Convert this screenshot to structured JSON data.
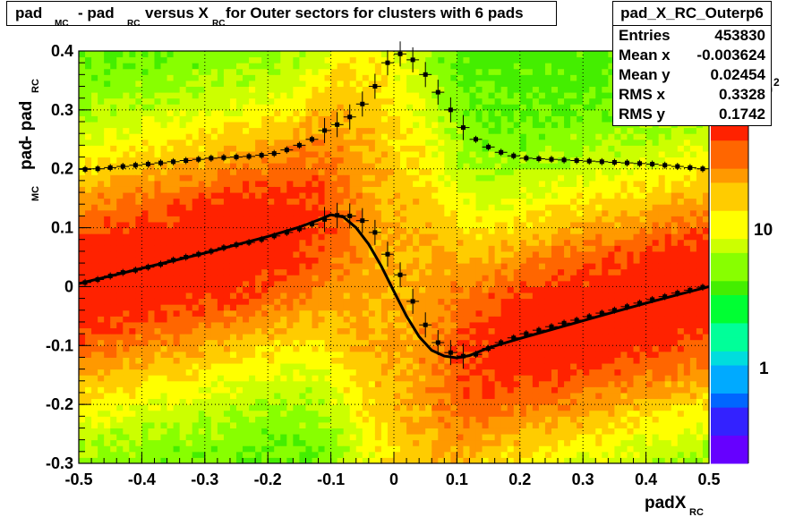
{
  "title": {
    "p1": "pad",
    "s1": "MC",
    "p2": " - pad",
    "s2": "RC",
    "p3": " versus X",
    "s3": "RC",
    "p4": " for Outer sectors for clusters with 6 pads"
  },
  "stats": {
    "name": "pad_X_RC_Outerp6",
    "rows": [
      {
        "key": "Entries",
        "value": "453830"
      },
      {
        "key": "Mean x",
        "value": "-0.003624"
      },
      {
        "key": "Mean y",
        "value": "0.02454"
      },
      {
        "key": "RMS x",
        "value": "0.3328"
      },
      {
        "key": "RMS y",
        "value": "0.1742"
      }
    ]
  },
  "colors": {
    "frame": "#000000",
    "points": "#000000",
    "fit_curve": "#000000",
    "palette": [
      "#6600ff",
      "#3322ff",
      "#0066ff",
      "#00aaff",
      "#00dddd",
      "#00ff99",
      "#00ff33",
      "#44ee00",
      "#88ff00",
      "#ccff00",
      "#ffff00",
      "#ffcc00",
      "#ff9900",
      "#ff6600",
      "#ff2200"
    ]
  },
  "chart_data": {
    "type": "heatmap",
    "xlabel": "padX",
    "xlabel_sub": "RC",
    "ylabel": "pad",
    "ylabel_sub1": "MC",
    "ylabel_mid": " - pad",
    "ylabel_sub2": "RC",
    "xlim": [
      -0.5,
      0.5
    ],
    "ylim": [
      -0.3,
      0.4
    ],
    "x_ticks": [
      "-0.5",
      "-0.4",
      "-0.3",
      "-0.2",
      "-0.1",
      "0",
      "0.1",
      "0.2",
      "0.3",
      "0.4",
      "0.5"
    ],
    "y_ticks": [
      "-0.3",
      "-0.2",
      "-0.1",
      "0",
      "0.1",
      "0.2",
      "0.3",
      "0.4"
    ],
    "grid": true,
    "z_log": true,
    "colorbar_labels": [
      "1",
      "10",
      "10"
    ],
    "colorbar_exp": "2",
    "mean_profile": {
      "x": [
        -0.49,
        -0.47,
        -0.45,
        -0.43,
        -0.41,
        -0.39,
        -0.37,
        -0.35,
        -0.33,
        -0.31,
        -0.29,
        -0.27,
        -0.25,
        -0.23,
        -0.21,
        -0.19,
        -0.17,
        -0.15,
        -0.13,
        -0.11,
        -0.09,
        -0.07,
        -0.05,
        -0.03,
        -0.01,
        0.01,
        0.03,
        0.05,
        0.07,
        0.09,
        0.11,
        0.13,
        0.15,
        0.17,
        0.19,
        0.21,
        0.23,
        0.25,
        0.27,
        0.29,
        0.31,
        0.33,
        0.35,
        0.37,
        0.39,
        0.41,
        0.43,
        0.45,
        0.47,
        0.49
      ],
      "y": [
        0.007,
        0.012,
        0.018,
        0.024,
        0.028,
        0.033,
        0.038,
        0.045,
        0.05,
        0.055,
        0.06,
        0.066,
        0.071,
        0.075,
        0.08,
        0.086,
        0.092,
        0.098,
        0.106,
        0.114,
        0.121,
        0.12,
        0.112,
        0.092,
        0.055,
        0.02,
        -0.025,
        -0.065,
        -0.095,
        -0.112,
        -0.118,
        -0.115,
        -0.105,
        -0.095,
        -0.087,
        -0.08,
        -0.074,
        -0.068,
        -0.062,
        -0.057,
        -0.051,
        -0.045,
        -0.04,
        -0.034,
        -0.028,
        -0.022,
        -0.017,
        -0.011,
        -0.006,
        -0.001
      ]
    },
    "rms_profile": {
      "x": [
        -0.49,
        -0.47,
        -0.45,
        -0.43,
        -0.41,
        -0.39,
        -0.37,
        -0.35,
        -0.33,
        -0.31,
        -0.29,
        -0.27,
        -0.25,
        -0.23,
        -0.21,
        -0.19,
        -0.17,
        -0.15,
        -0.13,
        -0.11,
        -0.09,
        -0.07,
        -0.05,
        -0.03,
        -0.01,
        0.01,
        0.03,
        0.05,
        0.07,
        0.09,
        0.11,
        0.13,
        0.15,
        0.17,
        0.19,
        0.21,
        0.23,
        0.25,
        0.27,
        0.29,
        0.31,
        0.33,
        0.35,
        0.37,
        0.39,
        0.41,
        0.43,
        0.45,
        0.47,
        0.49
      ],
      "y": [
        0.199,
        0.2,
        0.202,
        0.204,
        0.206,
        0.208,
        0.21,
        0.212,
        0.214,
        0.216,
        0.218,
        0.219,
        0.22,
        0.221,
        0.223,
        0.226,
        0.232,
        0.24,
        0.25,
        0.265,
        0.275,
        0.288,
        0.31,
        0.34,
        0.38,
        0.395,
        0.385,
        0.36,
        0.33,
        0.3,
        0.27,
        0.25,
        0.237,
        0.228,
        0.222,
        0.218,
        0.217,
        0.216,
        0.215,
        0.214,
        0.213,
        0.212,
        0.211,
        0.21,
        0.209,
        0.208,
        0.206,
        0.204,
        0.202,
        0.2
      ]
    },
    "fit_curve": {
      "x": [
        -0.5,
        -0.45,
        -0.4,
        -0.35,
        -0.3,
        -0.25,
        -0.2,
        -0.15,
        -0.12,
        -0.1,
        -0.08,
        -0.06,
        -0.04,
        -0.02,
        0,
        0.02,
        0.04,
        0.06,
        0.08,
        0.1,
        0.12,
        0.15,
        0.2,
        0.25,
        0.3,
        0.35,
        0.4,
        0.45,
        0.5
      ],
      "y": [
        0.005,
        0.018,
        0.031,
        0.044,
        0.057,
        0.071,
        0.085,
        0.101,
        0.113,
        0.122,
        0.118,
        0.1,
        0.072,
        0.035,
        -0.008,
        -0.05,
        -0.085,
        -0.108,
        -0.118,
        -0.121,
        -0.117,
        -0.104,
        -0.088,
        -0.073,
        -0.058,
        -0.043,
        -0.028,
        -0.014,
        0.0
      ]
    }
  }
}
